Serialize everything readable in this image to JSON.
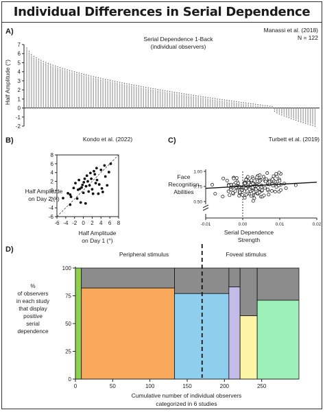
{
  "figure_title": "Individual Differences in Serial Dependence",
  "chart_data": [
    {
      "panel": "A)",
      "type": "bar",
      "title": "Serial Dependence 1-Back",
      "subtitle": "(individual observers)",
      "citation": "Manassi et al. (2018)",
      "n_label": "N = 122",
      "ylabel": "Half Amplitude (°)",
      "ylim": [
        -2,
        7
      ],
      "yticks": [
        -2,
        -1,
        0,
        1,
        2,
        3,
        4,
        5,
        6,
        7
      ],
      "ytick_labels": [
        "-2",
        "-1",
        "0",
        "1",
        "2",
        "3",
        "4",
        "5",
        "6",
        "7"
      ],
      "n": 122,
      "max_value": 6.5,
      "min_value": -1.9,
      "n_negative": 18,
      "bar_color": "#aaaaaa"
    },
    {
      "panel": "B)",
      "type": "scatter",
      "citation": "Kondo et al. (2022)",
      "xlabel": [
        "Half Amplitude",
        "on Day 1 (°)"
      ],
      "ylabel": [
        "Half Amplitude",
        "on Day 2 (°)"
      ],
      "xlim": [
        -6,
        8
      ],
      "ylim": [
        -6,
        8
      ],
      "xticks": [
        -6,
        -4,
        -2,
        0,
        2,
        4,
        6,
        8
      ],
      "xtick_labels": [
        "-6",
        "-4",
        "-2",
        "0",
        "2",
        "4",
        "6",
        "8"
      ],
      "yticks": [
        -6,
        -4,
        -2,
        0,
        2,
        4,
        6,
        8
      ],
      "ytick_labels": [
        "-6",
        "-4",
        "-2",
        "0",
        "2",
        "4",
        "6",
        "8"
      ],
      "identity_line": true,
      "points": [
        [
          -4.6,
          -1.8
        ],
        [
          -3.5,
          -0.7
        ],
        [
          -3.0,
          -1.0
        ],
        [
          -2.2,
          0.5
        ],
        [
          -1.8,
          1.6
        ],
        [
          -1.4,
          -1.9
        ],
        [
          -1.2,
          0.1
        ],
        [
          -1.0,
          2.3
        ],
        [
          -0.8,
          0.3
        ],
        [
          -0.6,
          -2.8
        ],
        [
          -0.4,
          0.6
        ],
        [
          -0.2,
          1.2
        ],
        [
          0.0,
          -0.6
        ],
        [
          0.1,
          1.8
        ],
        [
          0.3,
          2.6
        ],
        [
          0.6,
          0.9
        ],
        [
          0.8,
          3.3
        ],
        [
          1.0,
          2.0
        ],
        [
          1.2,
          -0.3
        ],
        [
          1.4,
          1.1
        ],
        [
          1.6,
          3.9
        ],
        [
          1.8,
          2.6
        ],
        [
          2.0,
          0.2
        ],
        [
          2.2,
          -0.8
        ],
        [
          2.4,
          4.3
        ],
        [
          2.6,
          3.6
        ],
        [
          2.8,
          1.6
        ],
        [
          3.0,
          5.0
        ],
        [
          3.1,
          2.3
        ],
        [
          3.4,
          -0.8
        ],
        [
          3.6,
          1.3
        ],
        [
          4.0,
          4.6
        ],
        [
          4.2,
          0.4
        ],
        [
          4.4,
          -0.4
        ],
        [
          4.8,
          5.6
        ],
        [
          5.0,
          3.1
        ],
        [
          5.4,
          1.1
        ],
        [
          5.8,
          4.1
        ],
        [
          6.2,
          6.0
        ],
        [
          -3.0,
          -3.3
        ],
        [
          0.5,
          -3.0
        ],
        [
          -2.8,
          -1.5
        ]
      ]
    },
    {
      "panel": "C)",
      "type": "scatter",
      "citation": "Turbett et al. (2019)",
      "xlabel": [
        "Serial Dependence",
        "Strength"
      ],
      "ylabel": [
        "Face",
        "Recognition",
        "Abilities"
      ],
      "xlim": [
        -0.01,
        0.02
      ],
      "ylim": [
        0.5,
        1.0
      ],
      "xticks": [
        -0.01,
        0.0,
        0.01,
        0.02
      ],
      "xtick_labels": [
        "-0.01",
        "0.00",
        "0.01",
        "0.02"
      ],
      "yticks": [
        0.5,
        0.75,
        1.0
      ],
      "ytick_labels": [
        "0.50",
        "0.75",
        "1.00"
      ],
      "zero_line_x": 0.0,
      "trend_line": [
        [
          -0.01,
          0.72
        ],
        [
          0.02,
          0.82
        ]
      ],
      "n_points": 170,
      "seed": 7
    },
    {
      "panel": "D)",
      "type": "bar",
      "subtype": "variable-width-stacked",
      "ylabel": [
        "%",
        "of observers",
        "in each study",
        "that display",
        "positive",
        "serial",
        "dependence"
      ],
      "xlabel": [
        "Cumulative number of individual observers",
        "categorized in 6 studies"
      ],
      "xlim": [
        0,
        300
      ],
      "ylim": [
        0,
        100
      ],
      "xticks": [
        0,
        50,
        100,
        150,
        200,
        250
      ],
      "xtick_labels": [
        "0",
        "50",
        "100",
        "150",
        "200",
        "250"
      ],
      "yticks": [
        0,
        25,
        50,
        75,
        100
      ],
      "ytick_labels": [
        "0",
        "25",
        "50",
        "75",
        "100"
      ],
      "divider_x": 170,
      "group_labels": [
        "Peripheral stimulus",
        "Foveal stimulus"
      ],
      "remainder_color": "#8c8c8c",
      "bars": [
        {
          "start": 0,
          "width": 8,
          "value": 100,
          "color": "#8fd14f"
        },
        {
          "start": 8,
          "width": 125,
          "value": 82,
          "color": "#f7a85a"
        },
        {
          "start": 133,
          "width": 73,
          "value": 77,
          "color": "#8ecfee"
        },
        {
          "start": 206,
          "width": 15,
          "value": 83,
          "color": "#c3bce8"
        },
        {
          "start": 221,
          "width": 23,
          "value": 57,
          "color": "#fdf5a6"
        },
        {
          "start": 244,
          "width": 56,
          "value": 71,
          "color": "#9ef0b9"
        }
      ]
    }
  ]
}
